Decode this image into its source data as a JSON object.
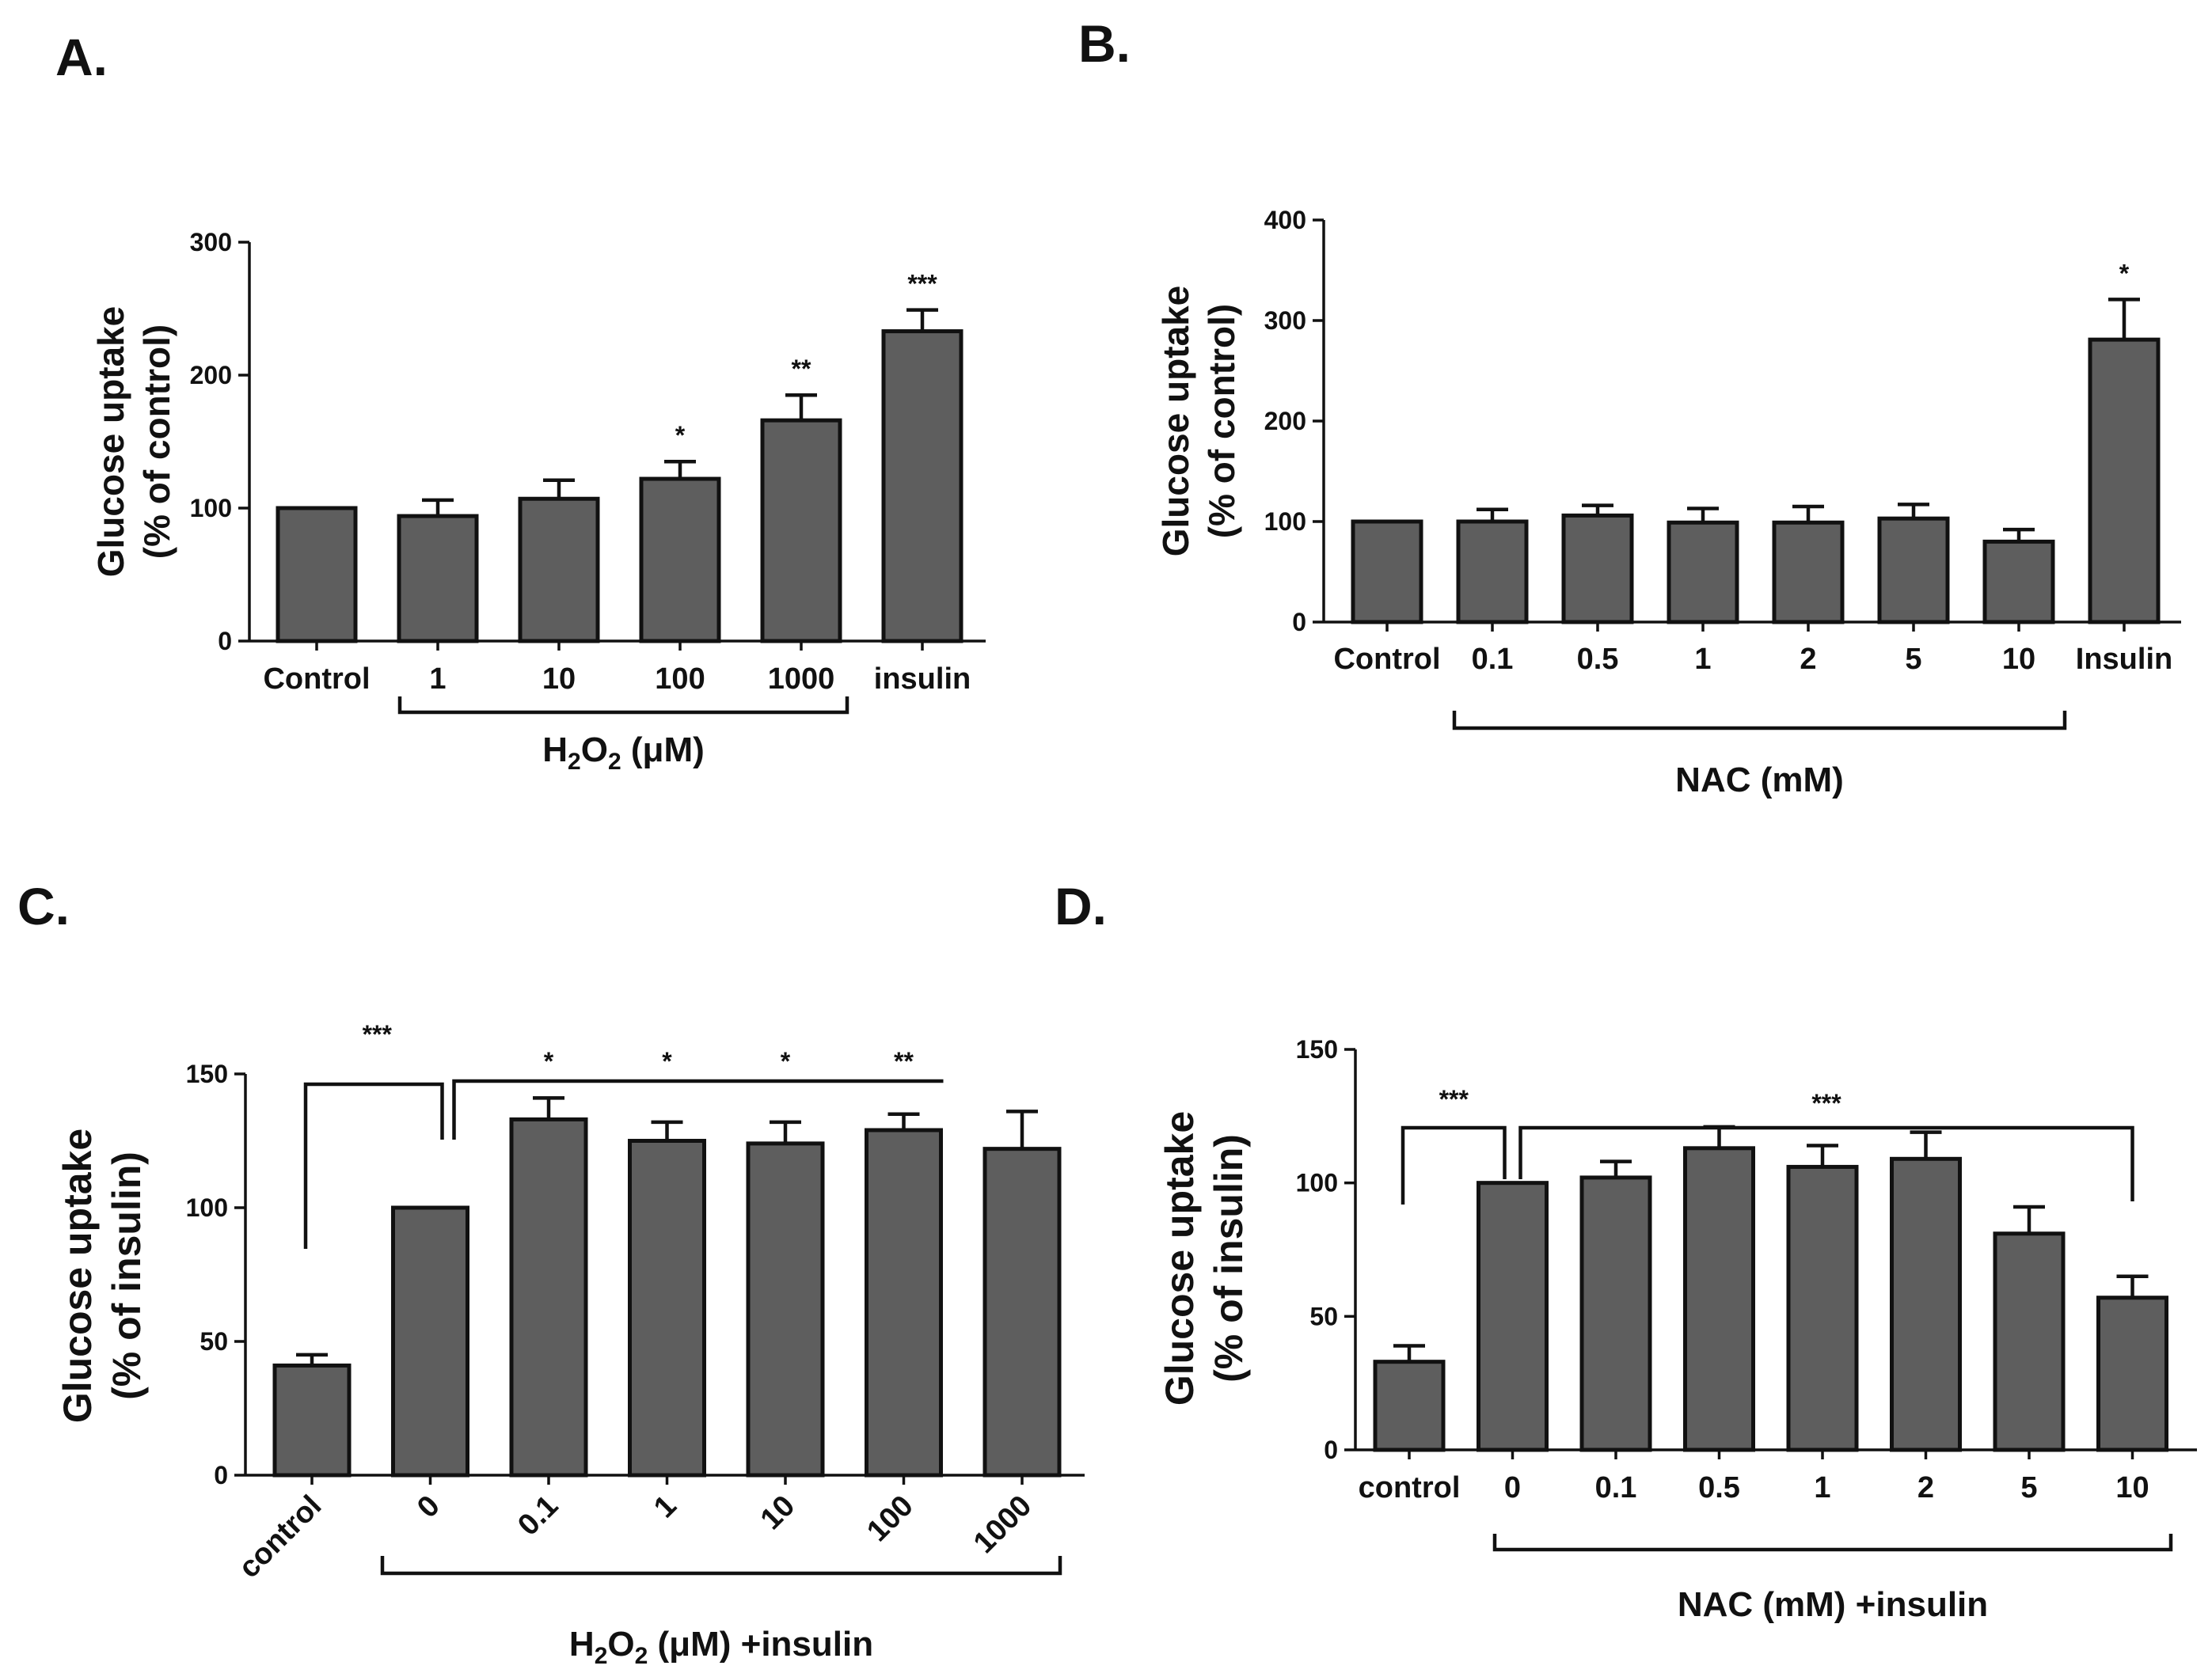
{
  "chart_data": [
    {
      "id": "A",
      "panel_label": "A.",
      "type": "bar",
      "ylabel": [
        "Glucose uptake",
        "(% of control)"
      ],
      "ylim": [
        0,
        300
      ],
      "yticks": [
        0,
        100,
        200,
        300
      ],
      "categories": [
        "Control",
        "1",
        "10",
        "100",
        "1000",
        "insulin"
      ],
      "values": [
        100,
        94,
        107,
        122,
        166,
        233
      ],
      "errors": [
        0,
        12,
        14,
        13,
        19,
        16
      ],
      "significance": [
        "",
        "",
        "",
        "*",
        "**",
        "***"
      ],
      "group": {
        "label": "H",
        "sub1": "2",
        "mid": "O",
        "sub2": "2",
        "rest": " (μM)",
        "from": 1,
        "to": 4
      }
    },
    {
      "id": "B",
      "panel_label": "B.",
      "type": "bar",
      "ylabel": [
        "Glucose uptake",
        "(% of control)"
      ],
      "ylim": [
        0,
        400
      ],
      "yticks": [
        0,
        100,
        200,
        300,
        400
      ],
      "categories": [
        "Control",
        "0.1",
        "0.5",
        "1",
        "2",
        "5",
        "10",
        "Insulin"
      ],
      "values": [
        100,
        100,
        106,
        99,
        99,
        103,
        80,
        281
      ],
      "errors": [
        0,
        12,
        10,
        14,
        16,
        14,
        12,
        40
      ],
      "significance": [
        "",
        "",
        "",
        "",
        "",
        "",
        "",
        "*"
      ],
      "group": {
        "label": "NAC (mM)",
        "from": 1,
        "to": 6
      }
    },
    {
      "id": "C",
      "panel_label": "C.",
      "type": "bar",
      "ylabel": [
        "Glucose uptake",
        "(% of insulin)"
      ],
      "ylim": [
        0,
        150
      ],
      "yticks": [
        0,
        50,
        100,
        150
      ],
      "categories": [
        "control",
        "0",
        "0.1",
        "1",
        "10",
        "100",
        "1000"
      ],
      "values": [
        41,
        100,
        133,
        125,
        124,
        129,
        122
      ],
      "errors": [
        4,
        0,
        8,
        7,
        8,
        6,
        14
      ],
      "significance": [
        "",
        "",
        "*",
        "*",
        "*",
        "**",
        ""
      ],
      "comparisons": [
        {
          "from": 0,
          "to": 1,
          "label": "***"
        },
        {
          "from": 1,
          "to": 5,
          "label": ""
        }
      ],
      "group": {
        "label": "H",
        "sub1": "2",
        "mid": "O",
        "sub2": "2",
        "rest": " (μM) +insulin",
        "from": 1,
        "to": 6
      }
    },
    {
      "id": "D",
      "panel_label": "D.",
      "type": "bar",
      "ylabel": [
        "Glucose uptake",
        "(% of insulin)"
      ],
      "ylim": [
        0,
        150
      ],
      "yticks": [
        0,
        50,
        100,
        150
      ],
      "categories": [
        "control",
        "0",
        "0.1",
        "0.5",
        "1",
        "2",
        "5",
        "10"
      ],
      "values": [
        33,
        100,
        102,
        113,
        106,
        109,
        81,
        57
      ],
      "errors": [
        6,
        0,
        6,
        8,
        8,
        10,
        10,
        8
      ],
      "significance": [
        "",
        "",
        "",
        "",
        "",
        "",
        "",
        ""
      ],
      "comparisons": [
        {
          "from": 0,
          "to": 1,
          "label": "***"
        },
        {
          "from": 1,
          "to": 7,
          "label": "***"
        }
      ],
      "group": {
        "label": "NAC (mM) +insulin",
        "from": 1,
        "to": 7
      }
    }
  ]
}
